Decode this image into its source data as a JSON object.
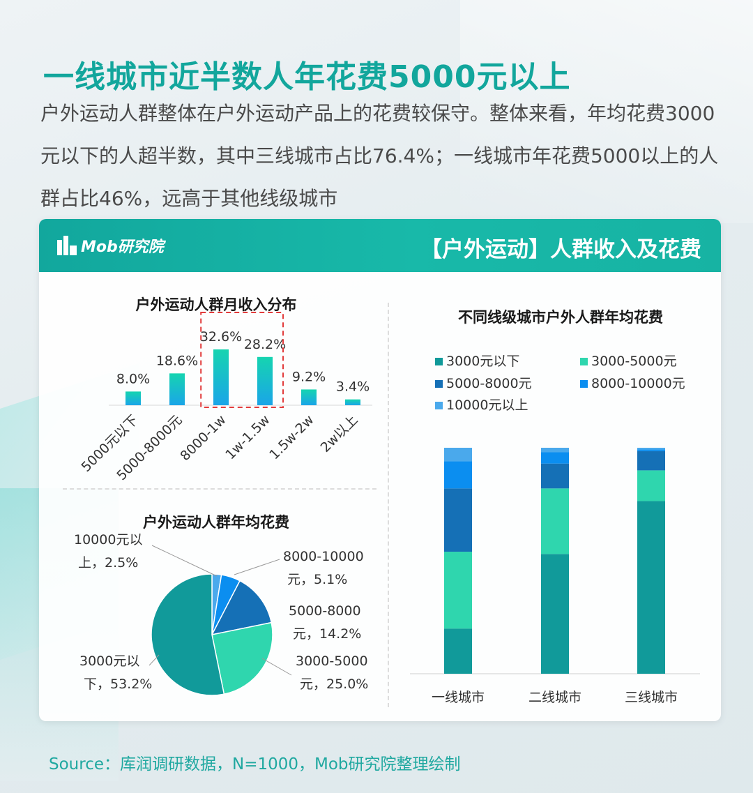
{
  "page": {
    "title": "一线城市近半数人年花费5000元以上",
    "description": "户外运动人群整体在户外运动产品上的花费较保守。整体来看，年均花费3000元以下的人超半数，其中三线城市占比76.4%；一线城市年花费5000以上的人群占比46%，远高于其他线级城市"
  },
  "card": {
    "logo_text": "Mob研究院",
    "title": "【户外运动】人群收入及花费"
  },
  "source": "Source：库润调研数据，N=1000，Mob研究院整理绘制",
  "colors": {
    "teal_dark": "#119a9a",
    "teal_light": "#2fd6ae",
    "blue_dark": "#1570b6",
    "blue_mid": "#0b8ef0",
    "blue_light": "#4aa9ec",
    "header": "#12a79d"
  },
  "chart_data": [
    {
      "type": "bar",
      "title": "户外运动人群月收入分布",
      "categories": [
        "5000元以下",
        "5000-8000元",
        "8000-1w",
        "1w-1.5w",
        "1.5w-2w",
        "2w以上"
      ],
      "values": [
        8.0,
        18.6,
        32.6,
        28.2,
        9.2,
        3.4
      ],
      "value_labels": [
        "8.0%",
        "18.6%",
        "32.6%",
        "28.2%",
        "9.2%",
        "3.4%"
      ],
      "highlight": [
        "8000-1w",
        "1w-1.5w"
      ],
      "ylim": [
        0,
        35
      ]
    },
    {
      "type": "pie",
      "title": "户外运动人群年均花费",
      "slices": [
        {
          "label": "3000元以下",
          "value": 53.2,
          "text": "3000元以下，53.2%"
        },
        {
          "label": "3000-5000元",
          "value": 25.0,
          "text": "3000-5000元，25.0%"
        },
        {
          "label": "5000-8000元",
          "value": 14.2,
          "text": "5000-8000元，14.2%"
        },
        {
          "label": "8000-10000元",
          "value": 5.1,
          "text": "8000-10000元，5.1%"
        },
        {
          "label": "10000元以上",
          "value": 2.5,
          "text": "10000元以上，2.5%"
        }
      ],
      "label_lines": {
        "s0": [
          "3000元以",
          "下，53.2%"
        ],
        "s1": [
          "3000-5000",
          "元，25.0%"
        ],
        "s2": [
          "5000-8000",
          "元，14.2%"
        ],
        "s3": [
          "8000-10000",
          "元，5.1%"
        ],
        "s4": [
          "10000元以",
          "上，2.5%"
        ]
      }
    },
    {
      "type": "bar",
      "stacked": true,
      "title": "不同线级城市户外人群年均花费",
      "categories": [
        "一线城市",
        "二线城市",
        "三线城市"
      ],
      "series": [
        {
          "name": "3000元以下",
          "values": [
            20.0,
            53.0,
            76.4
          ]
        },
        {
          "name": "3000-5000元",
          "values": [
            34.0,
            29.0,
            13.6
          ]
        },
        {
          "name": "5000-8000元",
          "values": [
            28.0,
            11.0,
            8.5
          ]
        },
        {
          "name": "8000-10000元",
          "values": [
            12.0,
            5.0,
            0.8
          ]
        },
        {
          "name": "10000元以上",
          "values": [
            6.0,
            2.0,
            0.7
          ]
        }
      ],
      "legend_position": "top",
      "ylim": [
        0,
        100
      ]
    }
  ]
}
